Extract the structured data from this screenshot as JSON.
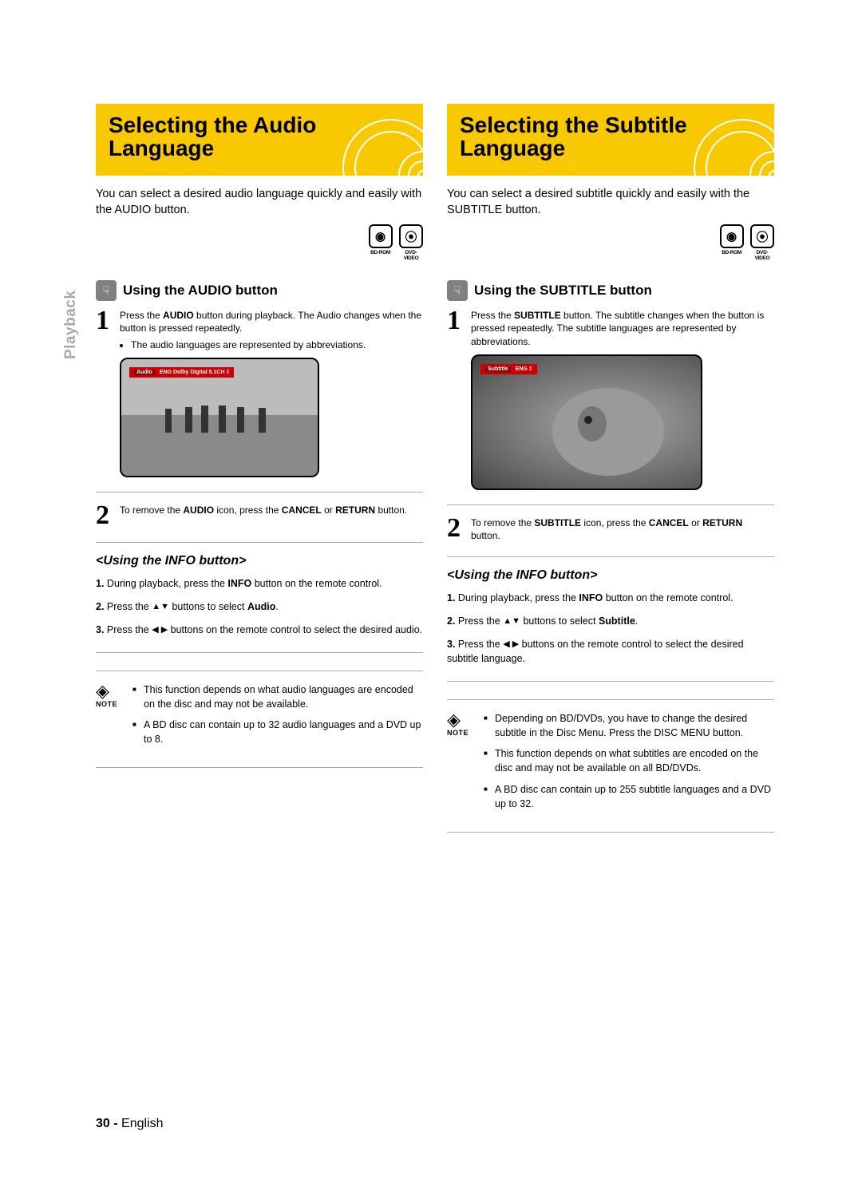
{
  "page": {
    "number": "30",
    "lang": "English",
    "sideTab": "Playback"
  },
  "mediaIcons": {
    "bd": {
      "symbol": "◉",
      "label": "BD-ROM"
    },
    "dvd": {
      "symbol": "⦿",
      "label": "DVD-VIDEO"
    }
  },
  "noteLabel": "NOTE",
  "left": {
    "title": "Selecting the Audio Language",
    "intro": "You can select a desired audio language quickly and easily with the AUDIO button.",
    "subHeading": "Using the AUDIO button",
    "step1": {
      "text": "Press the AUDIO button during playback. The Audio changes when the button is pressed repeatedly.",
      "bullet": "The audio languages are represented by abbreviations."
    },
    "osd": {
      "label": "Audio",
      "value": "ENG Dolby Digital 5.1CH ‡"
    },
    "step2": "To remove the AUDIO icon, press the CANCEL or RETURN button.",
    "infoHeading": "<Using the INFO button>",
    "info1": "During playback, press the INFO button on the remote control.",
    "info2a": "Press the ",
    "info2b": " buttons to select Audio.",
    "info3a": "Press the ",
    "info3b": " buttons on the remote control to select the desired audio.",
    "note1": "This function depends on what audio languages are encoded on the disc and may not be available.",
    "note2": "A BD disc can contain up to 32 audio languages and a DVD up to 8."
  },
  "right": {
    "title": "Selecting the Subtitle Language",
    "intro": "You can select a desired subtitle quickly and easily with the SUBTITLE button.",
    "subHeading": "Using the SUBTITLE button",
    "step1": "Press the SUBTITLE button. The subtitle changes when the button is pressed repeatedly. The subtitle languages are represented by abbreviations.",
    "osd": {
      "label": "Subtitle",
      "value": "ENG ‡"
    },
    "step2": "To remove the SUBTITLE icon, press the CANCEL or RETURN button.",
    "infoHeading": "<Using the INFO button>",
    "info1": "During playback, press the INFO button on the remote control.",
    "info2a": "Press the ",
    "info2b": " buttons to select Subtitle.",
    "info3a": "Press the ",
    "info3b": " buttons on the remote control to select the desired subtitle language.",
    "note1": "Depending on BD/DVDs, you have to change the desired subtitle in the Disc Menu. Press the DISC MENU button.",
    "note2": "This function depends on what subtitles are encoded on the disc and may not be available on all BD/DVDs.",
    "note3": "A BD disc can contain up to 255 subtitle languages and a DVD up to 32."
  },
  "colors": {
    "accent": "#f8c800",
    "grey": "#aaaaaa"
  }
}
